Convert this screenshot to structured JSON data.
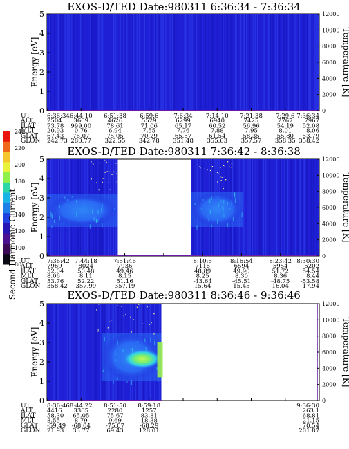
{
  "colors": {
    "background_spectrogram": "#1f1fd6",
    "stripe_light": "#2f45f0",
    "stripe_dark": "#1414b8",
    "plasma_mid": "#2a6cf5",
    "plasma_core": "#33c4f0",
    "plasma_hot": "#9bef52",
    "temperature_line": "#6a1aa8",
    "gap": "#ffffff",
    "dots": "#f0f0a0"
  },
  "colorbar": {
    "label": "Second Harmonic Current",
    "ticks": [
      "240",
      "220",
      "200",
      "180",
      "160",
      "140",
      "120",
      "100",
      "80"
    ],
    "colors": [
      "#e8160c",
      "#f0681a",
      "#f5c52d",
      "#e9f23a",
      "#8ff04a",
      "#2cd6a6",
      "#19b3e6",
      "#1d7fe8",
      "#2040e0",
      "#2616b6",
      "#4a1090",
      "#3a0a55",
      "#0a0a14"
    ]
  },
  "chart_data": [
    {
      "type": "heatmap",
      "title": "EXOS-D/TED   Date:980311   6:36:34 - 7:36:34",
      "ylabel": "Energy [eV]",
      "y2label": "Temperature [K]",
      "ylim": [
        0,
        5
      ],
      "y2lim": [
        0,
        12000
      ],
      "yticks": [
        "0",
        "1",
        "2",
        "3",
        "4",
        "5"
      ],
      "y2ticks": [
        "0",
        "2000",
        "4000",
        "6000",
        "8000",
        "10000",
        "12000"
      ],
      "coverage": [
        [
          0,
          1
        ]
      ],
      "blobs": [],
      "table": {
        "row_labels": [
          "UT",
          "ALT",
          "ILAT",
          "MLT",
          "GLAT",
          "GLON"
        ],
        "columns": [
          [
            "6:36:34",
            "2504",
            "73.78",
            "20.93",
            "67.43",
            "242.73"
          ],
          [
            "6:44:10",
            "3609",
            "999.00",
            "0.76",
            "76.07",
            "280.77"
          ],
          [
            "6:51:38",
            "4626",
            "78.61",
            "6.94",
            "75.05",
            "322.55"
          ],
          [
            "6:59:6",
            "5529",
            "71.06",
            "7.55",
            "70.29",
            "342.78"
          ],
          [
            "7:6:34",
            "6299",
            "65.17",
            "7.76",
            "65.57",
            "351.48"
          ],
          [
            "7:14:10",
            "6940",
            "60.52",
            "7.88",
            "61.54",
            "355.63"
          ],
          [
            "7:21:38",
            "7425",
            "56.96",
            "7.95",
            "58.35",
            "357.57"
          ],
          [
            "7:29:6",
            "7767",
            "54.19",
            "8.01",
            "55.80",
            "358.35"
          ],
          [
            "7:36:34",
            "7967",
            "52.08",
            "8.06",
            "53.79",
            "358.42"
          ]
        ]
      }
    },
    {
      "type": "heatmap",
      "title": "EXOS-D/TED   Date:980311   7:36:42 - 8:36:38",
      "ylabel": "Energy [eV]",
      "y2label": "Temperature [K]",
      "ylim": [
        0,
        5
      ],
      "y2lim": [
        0,
        12000
      ],
      "yticks": [
        "0",
        "1",
        "2",
        "3",
        "4",
        "5"
      ],
      "y2ticks": [
        "0",
        "2000",
        "4000",
        "6000",
        "8000",
        "10000",
        "12000"
      ],
      "coverage": [
        [
          0,
          0.26
        ],
        [
          0.53,
          1
        ]
      ],
      "blobs": [
        {
          "x0": 0,
          "x1": 0.26,
          "emin": 1.5,
          "emax": 3.2
        },
        {
          "x0": 0.53,
          "x1": 0.72,
          "emin": 1.5,
          "emax": 3.3
        }
      ],
      "table": {
        "row_labels": [
          "UT",
          "ALT",
          "ILAT",
          "MLT",
          "GLAT",
          "GLON"
        ],
        "columns": [
          [
            "7:36:42",
            "7969",
            "52.04",
            "8.06",
            "53.76",
            "358.42"
          ],
          [
            "7:44:18",
            "8024",
            "50.48",
            "8.11",
            "52.22",
            "357.99"
          ],
          [
            "7:51:46",
            "7936",
            "49.46",
            "8.15",
            "51.16",
            "357.19"
          ],
          [
            "",
            "",
            "",
            "",
            "",
            ""
          ],
          [
            "8:10:6",
            "7116",
            "48.89",
            "8.25",
            "-43.64",
            "15.64"
          ],
          [
            "8:16:54",
            "6594",
            "49.90",
            "8.30",
            "-45.51",
            "15.45"
          ],
          [
            "8:23:42",
            "5954",
            "51.72",
            "8.36",
            "-48.75",
            "16.04"
          ],
          [
            "8:30:30",
            "5202",
            "54.54",
            "8.44",
            "-53.58",
            "17.94"
          ]
        ]
      }
    },
    {
      "type": "heatmap",
      "title": "EXOS-D/TED   Date:980311   8:36:46 - 9:36:46",
      "ylabel": "Energy [eV]",
      "y2label": "Temperature [K]",
      "ylim": [
        0,
        5
      ],
      "y2lim": [
        0,
        12000
      ],
      "yticks": [
        "0",
        "1",
        "2",
        "3",
        "4",
        "5"
      ],
      "y2ticks": [
        "0",
        "2000",
        "4000",
        "6000",
        "8000",
        "10000",
        "12000"
      ],
      "coverage": [
        [
          0,
          0.42
        ]
      ],
      "blobs": [
        {
          "x0": 0.2,
          "x1": 0.42,
          "emin": 1.0,
          "emax": 3.5
        }
      ],
      "table": {
        "row_labels": [
          "UT",
          "ALT",
          "ILAT",
          "MLT",
          "GLAT",
          "GLON"
        ],
        "columns": [
          [
            "8:36:46",
            "4416",
            "58.30",
            "8.55",
            "-59.49",
            "21.93"
          ],
          [
            "8:44:22",
            "3365",
            "65.05",
            "8.79",
            "-68.04",
            "33.77"
          ],
          [
            "8:51:50",
            "2280",
            "75.67",
            "9.69",
            "-75.07",
            "69.43"
          ],
          [
            "8:59:18",
            "1257",
            "83.81",
            "18.38",
            "-68.29",
            "128.01"
          ],
          [
            "",
            "",
            "",
            "",
            "",
            ""
          ],
          [
            "",
            "",
            "",
            "",
            "",
            ""
          ],
          [
            "",
            "",
            "",
            "",
            "",
            ""
          ],
          [
            "",
            "",
            "",
            "",
            "",
            ""
          ],
          [
            "9:36:30",
            "263.1",
            "68.81",
            "21.15",
            "70.54",
            "201.87"
          ]
        ]
      }
    }
  ]
}
